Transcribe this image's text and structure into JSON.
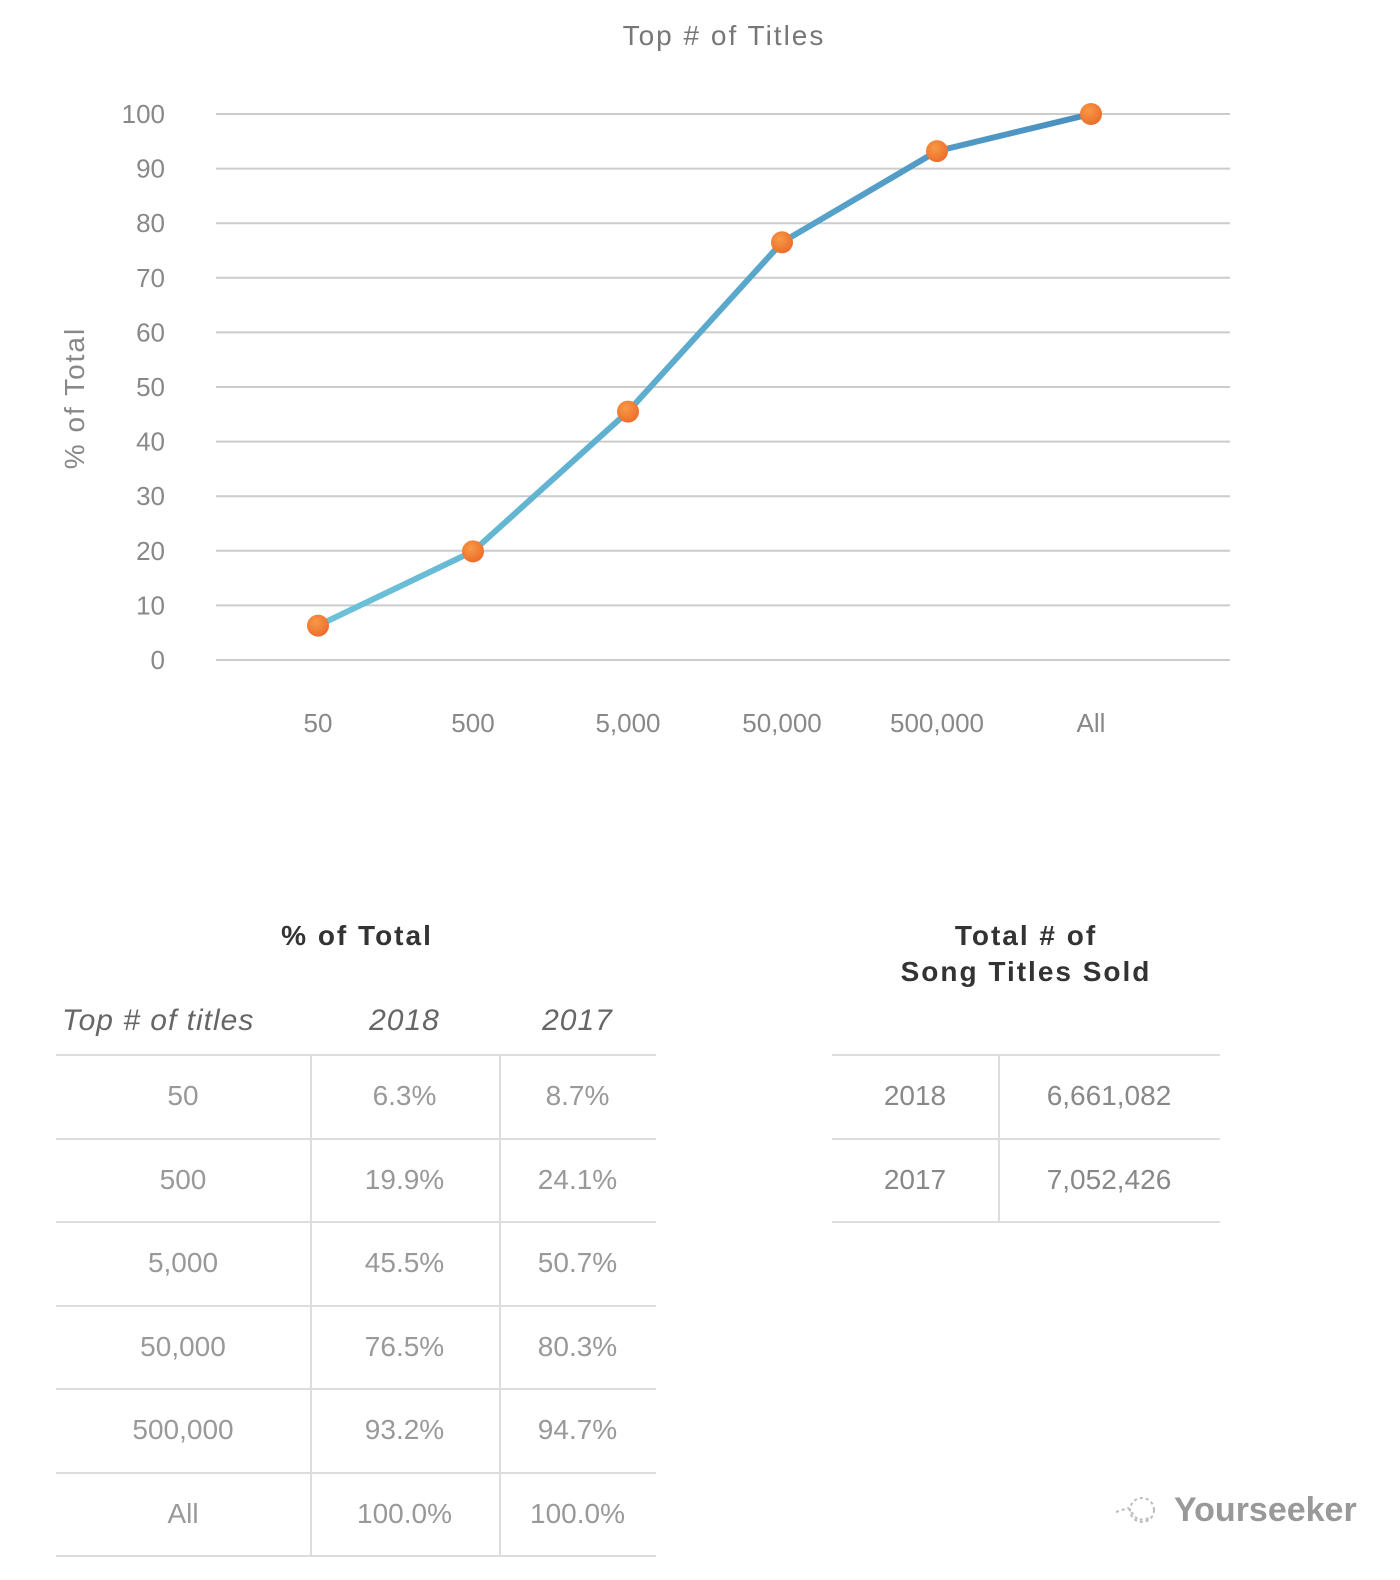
{
  "chart_data": {
    "type": "line",
    "title": "Top # of Titles",
    "xlabel": "",
    "ylabel": "% of Total",
    "categories": [
      "50",
      "500",
      "5,000",
      "50,000",
      "500,000",
      "All"
    ],
    "values": [
      6.3,
      19.9,
      45.5,
      76.5,
      93.2,
      100.0
    ],
    "ylim": [
      0,
      100
    ],
    "yticks": [
      "0",
      "10",
      "20",
      "30",
      "40",
      "50",
      "60",
      "70",
      "80",
      "90",
      "100"
    ],
    "grid": true,
    "colors": {
      "line_start": "#6cc3d9",
      "line_end": "#4a90c0",
      "marker": "#f07a30"
    }
  },
  "pct_table": {
    "title": "% of Total",
    "headers": [
      "Top # of titles",
      "2018",
      "2017"
    ],
    "rows": [
      [
        "50",
        "6.3%",
        "8.7%"
      ],
      [
        "500",
        "19.9%",
        "24.1%"
      ],
      [
        "5,000",
        "45.5%",
        "50.7%"
      ],
      [
        "50,000",
        "76.5%",
        "80.3%"
      ],
      [
        "500,000",
        "93.2%",
        "94.7%"
      ],
      [
        "All",
        "100.0%",
        "100.0%"
      ]
    ]
  },
  "total_table": {
    "title_line1": "Total # of",
    "title_line2": "Song Titles Sold",
    "rows": [
      [
        "2018",
        "6,661,082"
      ],
      [
        "2017",
        "7,052,426"
      ]
    ]
  },
  "watermark": {
    "text": "Yourseeker",
    "icon": "network-dots-icon"
  }
}
